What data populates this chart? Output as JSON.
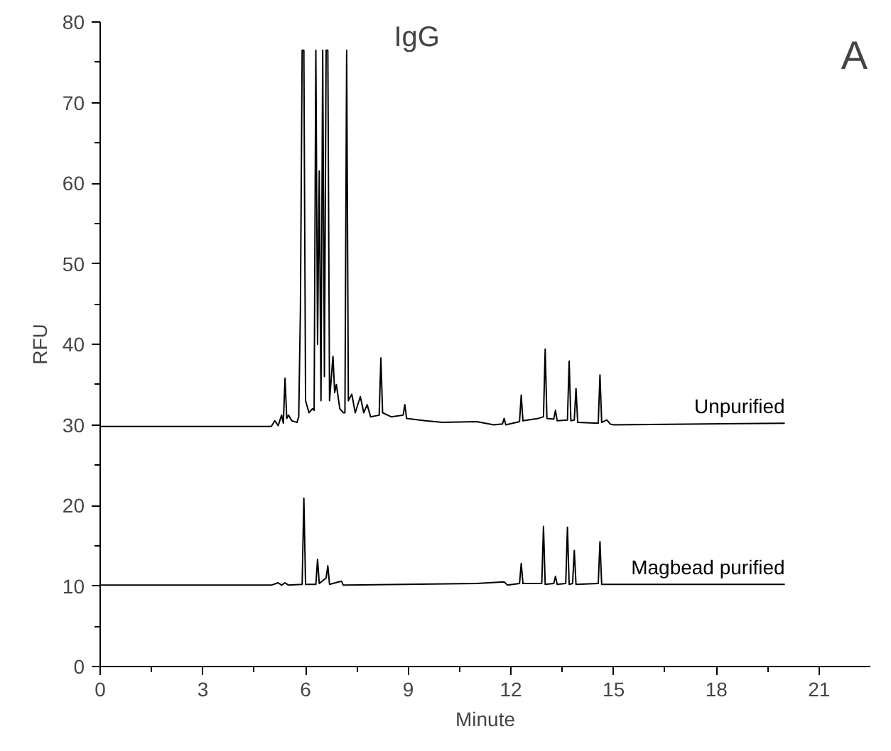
{
  "chart_data": {
    "type": "line",
    "title": "IgG",
    "xlabel": "Minute",
    "ylabel": "RFU",
    "annotations": [
      "A"
    ],
    "xlim": [
      0,
      22.5
    ],
    "ylim": [
      0,
      80
    ],
    "xticks": [
      0,
      3,
      6,
      9,
      12,
      15,
      18,
      21
    ],
    "yticks": [
      0,
      10,
      20,
      30,
      40,
      50,
      60,
      70,
      80
    ],
    "grid": false,
    "marker": "none",
    "line_style": "solid",
    "series": [
      {
        "name": "Unpurified",
        "color": "#000000",
        "x": [
          0,
          5.0,
          5.1,
          5.2,
          5.3,
          5.35,
          5.4,
          5.45,
          5.5,
          5.6,
          5.75,
          5.8,
          5.85,
          5.9,
          5.95,
          6.0,
          6.1,
          6.2,
          6.25,
          6.3,
          6.35,
          6.4,
          6.45,
          6.5,
          6.55,
          6.6,
          6.65,
          6.7,
          6.8,
          6.85,
          6.9,
          7.0,
          7.1,
          7.15,
          7.2,
          7.25,
          7.35,
          7.45,
          7.6,
          7.7,
          7.8,
          7.9,
          8.15,
          8.2,
          8.25,
          8.5,
          8.85,
          8.9,
          8.95,
          9.5,
          10,
          11,
          11.5,
          11.75,
          11.8,
          11.85,
          12.25,
          12.3,
          12.35,
          12.8,
          12.95,
          13.0,
          13.05,
          13.25,
          13.3,
          13.35,
          13.65,
          13.7,
          13.75,
          13.85,
          13.9,
          13.95,
          14.55,
          14.6,
          14.65,
          14.8,
          14.9,
          15,
          20
        ],
        "values": [
          29.8,
          29.8,
          30.5,
          29.9,
          31.2,
          30.2,
          35.8,
          30.8,
          31.2,
          30.5,
          30.3,
          31.0,
          44.5,
          76.5,
          76.5,
          33.0,
          31.5,
          32.0,
          31.8,
          76.5,
          40,
          61.5,
          33,
          76.5,
          36,
          76.5,
          76.5,
          33,
          38.5,
          34,
          35,
          32,
          31.5,
          31.5,
          76.5,
          33,
          33.8,
          31.5,
          33.5,
          31.5,
          32.5,
          31,
          31.2,
          38.3,
          31.5,
          31,
          31.2,
          32.5,
          30.8,
          30.5,
          30.3,
          30.4,
          30,
          30.1,
          30.8,
          30.0,
          30.4,
          33.7,
          30.5,
          30.8,
          31.0,
          39.4,
          30.8,
          30.7,
          31.8,
          30.5,
          30.6,
          37.9,
          30.5,
          30.6,
          34.5,
          30.3,
          30.2,
          36.2,
          30.3,
          30.6,
          30.1,
          30.0,
          30.2
        ]
      },
      {
        "name": "Magbead purified",
        "color": "#000000",
        "x": [
          0,
          5,
          5.2,
          5.3,
          5.4,
          5.5,
          5.9,
          5.95,
          6.0,
          6.3,
          6.35,
          6.4,
          6.6,
          6.65,
          6.7,
          7.05,
          7.1,
          11,
          11.8,
          11.9,
          12.25,
          12.3,
          12.35,
          12.9,
          12.95,
          13.0,
          13.25,
          13.3,
          13.35,
          13.6,
          13.65,
          13.7,
          13.8,
          13.85,
          13.9,
          14.55,
          14.6,
          14.65,
          20
        ],
        "values": [
          10.1,
          10.1,
          10.4,
          10.1,
          10.4,
          10.1,
          10.2,
          20.9,
          10.2,
          10.2,
          13.3,
          10.3,
          11.0,
          12.5,
          10.2,
          10.6,
          10.1,
          10.3,
          10.5,
          10.1,
          10.3,
          12.8,
          10.3,
          10.3,
          17.4,
          10.2,
          10.3,
          11.2,
          10.2,
          10.3,
          17.3,
          10.2,
          10.3,
          14.4,
          10.2,
          10.3,
          15.5,
          10.2,
          10.2
        ]
      }
    ]
  }
}
